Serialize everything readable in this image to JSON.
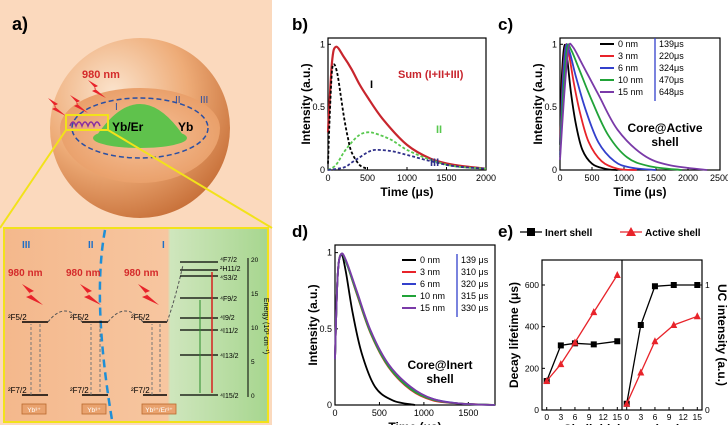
{
  "panel_a": {
    "label": "a)",
    "sphere_labels": {
      "wavelength": "980 nm",
      "core": "Yb/Er",
      "shell": "Yb",
      "region_I": "I",
      "region_II": "II",
      "region_III": "III"
    },
    "inset": {
      "regions": [
        "III",
        "II",
        "I"
      ],
      "wavelength": "980 nm",
      "yb_upper": "²F5/2",
      "yb_lower": "²F7/2",
      "yb_box": "Yb³⁺",
      "er_box": "Yb³⁺/Er³⁺",
      "axis_label": "Energy (10³ cm⁻¹)",
      "axis_ticks": [
        "0",
        "5",
        "10",
        "15",
        "20"
      ],
      "er_levels": [
        "⁴F7/2",
        "²H11/2",
        "⁴S3/2",
        "⁴F9/2",
        "⁴I9/2",
        "⁴I11/2",
        "⁴I13/2",
        "⁴I15/2"
      ]
    }
  },
  "colors": {
    "black": "#000000",
    "red": "#e8232a",
    "blue": "#3340cc",
    "purple": "#7a3aa8",
    "green": "#21a338",
    "dark_red": "#c8252d",
    "navy": "#30308a",
    "light_green": "#58c84e",
    "orange_sphere": "#e9a26e",
    "inset_orange": "#f2b386",
    "inset_green": "#b9dca6"
  },
  "chart_data": [
    {
      "panel": "b)",
      "type": "line",
      "xlabel": "Time (μs)",
      "ylabel": "Intensity (a.u.)",
      "xlim": [
        0,
        2000
      ],
      "ylim": [
        0,
        1.05
      ],
      "xticks": [
        0,
        500,
        1000,
        1500,
        2000
      ],
      "yticks": [
        0,
        0.5,
        1
      ],
      "series": [
        {
          "name": "Sum (I+II+III)",
          "color": "#c8252d",
          "x": [
            0,
            50,
            100,
            200,
            300,
            400,
            500,
            700,
            1000,
            1300,
            1600,
            2000
          ],
          "y": [
            0.3,
            0.85,
            0.98,
            0.9,
            0.8,
            0.68,
            0.58,
            0.4,
            0.2,
            0.09,
            0.04,
            0.01
          ]
        },
        {
          "name": "I",
          "color": "#000000",
          "x": [
            0,
            20,
            50,
            80,
            120,
            160,
            200,
            250,
            300,
            400,
            500
          ],
          "y": [
            0.05,
            0.4,
            0.78,
            0.84,
            0.76,
            0.6,
            0.43,
            0.26,
            0.14,
            0.04,
            0.01
          ]
        },
        {
          "name": "II",
          "color": "#58c84e",
          "x": [
            0,
            100,
            200,
            300,
            400,
            500,
            600,
            800,
            1000,
            1300,
            1600,
            2000
          ],
          "y": [
            0,
            0.04,
            0.14,
            0.22,
            0.28,
            0.3,
            0.29,
            0.24,
            0.16,
            0.08,
            0.03,
            0.01
          ]
        },
        {
          "name": "III",
          "color": "#30308a",
          "x": [
            0,
            200,
            300,
            400,
            500,
            600,
            800,
            1000,
            1300,
            1600,
            2000
          ],
          "y": [
            0,
            0.02,
            0.06,
            0.1,
            0.14,
            0.16,
            0.15,
            0.12,
            0.07,
            0.03,
            0.01
          ]
        }
      ]
    },
    {
      "panel": "c)",
      "type": "line",
      "xlabel": "Time (μs)",
      "ylabel": "Intensity (a.u.)",
      "xlim": [
        0,
        2500
      ],
      "ylim": [
        0,
        1.05
      ],
      "xticks": [
        0,
        500,
        1000,
        1500,
        2000,
        2500
      ],
      "yticks": [
        0,
        0.5,
        1
      ],
      "annotation": [
        "Core@Active",
        "shell"
      ],
      "series": [
        {
          "name": "0 nm",
          "lifetime": "139μs",
          "color": "#000000",
          "x": [
            0,
            30,
            70,
            110,
            170,
            250,
            350,
            500,
            700,
            900
          ],
          "y": [
            0.2,
            0.75,
            0.99,
            0.9,
            0.62,
            0.36,
            0.16,
            0.05,
            0.01,
            0
          ]
        },
        {
          "name": "3 nm",
          "lifetime": "220μs",
          "color": "#e8232a",
          "x": [
            0,
            40,
            90,
            140,
            220,
            320,
            450,
            650,
            900,
            1200
          ],
          "y": [
            0.15,
            0.7,
            0.99,
            0.92,
            0.68,
            0.44,
            0.22,
            0.07,
            0.01,
            0
          ]
        },
        {
          "name": "6 nm",
          "lifetime": "324μs",
          "color": "#3340cc",
          "x": [
            0,
            40,
            90,
            150,
            250,
            400,
            600,
            850,
            1100,
            1500
          ],
          "y": [
            0.12,
            0.65,
            0.98,
            0.94,
            0.74,
            0.48,
            0.22,
            0.07,
            0.02,
            0
          ]
        },
        {
          "name": "10 nm",
          "lifetime": "470μs",
          "color": "#21a338",
          "x": [
            0,
            50,
            110,
            170,
            300,
            500,
            750,
            1050,
            1400,
            1900
          ],
          "y": [
            0.1,
            0.6,
            0.97,
            0.96,
            0.8,
            0.55,
            0.28,
            0.1,
            0.03,
            0
          ]
        },
        {
          "name": "15 nm",
          "lifetime": "648μs",
          "color": "#7a3aa8",
          "x": [
            0,
            60,
            130,
            200,
            350,
            600,
            900,
            1300,
            1700,
            2300
          ],
          "y": [
            0.08,
            0.55,
            0.96,
            0.98,
            0.84,
            0.6,
            0.32,
            0.12,
            0.04,
            0
          ]
        }
      ]
    },
    {
      "panel": "d)",
      "type": "line",
      "xlabel": "Time (μs)",
      "ylabel": "Intensity (a.u.)",
      "xlim": [
        0,
        1800
      ],
      "ylim": [
        0,
        1.05
      ],
      "xticks": [
        0,
        500,
        1000,
        1500
      ],
      "yticks": [
        0,
        0.5,
        1
      ],
      "annotation": [
        "Core@Inert",
        "shell"
      ],
      "series": [
        {
          "name": "0 nm",
          "lifetime": "139 μs",
          "color": "#000000",
          "x": [
            0,
            30,
            70,
            120,
            200,
            300,
            450,
            650,
            900
          ],
          "y": [
            0.3,
            0.85,
            0.99,
            0.88,
            0.6,
            0.34,
            0.12,
            0.03,
            0
          ]
        },
        {
          "name": "3 nm",
          "lifetime": "310 μs",
          "color": "#e8232a",
          "x": [
            0,
            30,
            70,
            130,
            250,
            400,
            600,
            850,
            1100,
            1400,
            1800
          ],
          "y": [
            0.3,
            0.85,
            0.99,
            0.93,
            0.72,
            0.47,
            0.25,
            0.1,
            0.03,
            0.01,
            0
          ]
        },
        {
          "name": "6 nm",
          "lifetime": "320 μs",
          "color": "#3340cc",
          "x": [
            0,
            30,
            70,
            130,
            250,
            400,
            600,
            850,
            1100,
            1400,
            1800
          ],
          "y": [
            0.3,
            0.85,
            0.99,
            0.93,
            0.73,
            0.48,
            0.26,
            0.11,
            0.04,
            0.01,
            0
          ]
        },
        {
          "name": "10 nm",
          "lifetime": "315 μs",
          "color": "#21a338",
          "x": [
            0,
            30,
            70,
            130,
            250,
            400,
            600,
            850,
            1100,
            1400,
            1800
          ],
          "y": [
            0.3,
            0.85,
            0.99,
            0.93,
            0.725,
            0.475,
            0.255,
            0.105,
            0.035,
            0.01,
            0
          ]
        },
        {
          "name": "15 nm",
          "lifetime": "330 μs",
          "color": "#7a3aa8",
          "x": [
            0,
            30,
            70,
            130,
            250,
            400,
            600,
            850,
            1100,
            1400,
            1800
          ],
          "y": [
            0.3,
            0.85,
            0.99,
            0.94,
            0.74,
            0.49,
            0.27,
            0.12,
            0.04,
            0.01,
            0
          ]
        }
      ]
    },
    {
      "panel": "e)",
      "type": "line",
      "xlabel": "Shell thickness (nm)",
      "ylabel": "Decay lifetime (μs)",
      "ylabel_right": "UC intensity (a.u.)",
      "legend": [
        "Inert shell",
        "Active shell"
      ],
      "left": {
        "xlim": [
          -1,
          16
        ],
        "ylim": [
          0,
          720
        ],
        "xticks": [
          0,
          3,
          6,
          9,
          12,
          15
        ],
        "yticks": [
          0,
          200,
          400,
          600
        ],
        "series": [
          {
            "name": "Inert shell",
            "color": "#000000",
            "marker": "square",
            "x": [
              0,
              3,
              6,
              10,
              15
            ],
            "y": [
              139,
              310,
              320,
              315,
              330
            ]
          },
          {
            "name": "Active shell",
            "color": "#e8232a",
            "marker": "triangle",
            "x": [
              0,
              3,
              6,
              10,
              15
            ],
            "y": [
              139,
              220,
              324,
              470,
              648
            ]
          }
        ]
      },
      "right": {
        "xlim": [
          -1,
          16
        ],
        "ylim": [
          0,
          1.2
        ],
        "xticks": [
          0,
          3,
          6,
          9,
          12,
          15
        ],
        "yticks": [
          0,
          1
        ],
        "series": [
          {
            "name": "Inert shell",
            "color": "#000000",
            "marker": "square",
            "x": [
              0,
              3,
              6,
              10,
              15
            ],
            "y": [
              0.05,
              0.68,
              0.99,
              1.0,
              1.0
            ]
          },
          {
            "name": "Active shell",
            "color": "#e8232a",
            "marker": "triangle",
            "x": [
              0,
              3,
              6,
              10,
              15
            ],
            "y": [
              0.05,
              0.3,
              0.55,
              0.68,
              0.75
            ]
          }
        ]
      }
    }
  ]
}
